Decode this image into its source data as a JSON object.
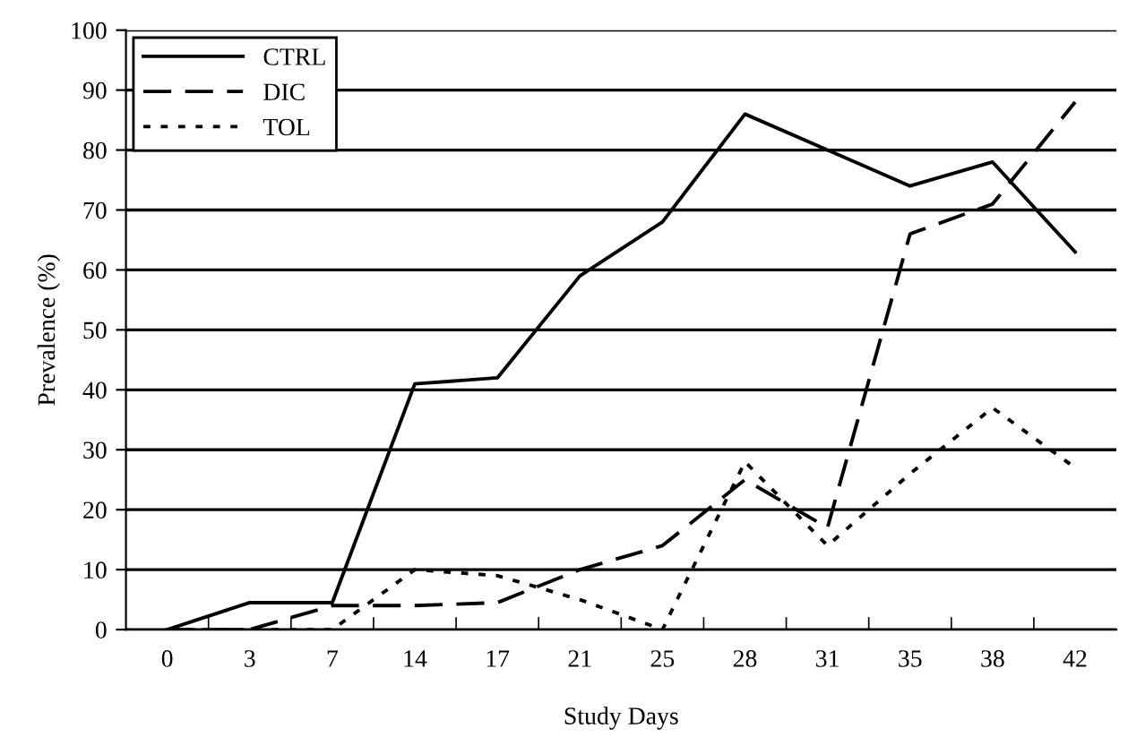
{
  "chart_data": {
    "type": "line",
    "xlabel": "Study Days",
    "ylabel": "Prevalence (%)",
    "categories": [
      "0",
      "3",
      "7",
      "14",
      "17",
      "21",
      "25",
      "28",
      "31",
      "35",
      "38",
      "42"
    ],
    "series": [
      {
        "name": "CTRL",
        "color": "#000000",
        "line_style": "solid",
        "values": [
          0,
          4.5,
          4.5,
          41,
          42,
          59,
          68,
          86,
          80,
          74,
          78,
          63
        ]
      },
      {
        "name": "DIC",
        "color": "#000000",
        "line_style": "dashed",
        "values": [
          0,
          0,
          4,
          4,
          4.5,
          10,
          14,
          25,
          17,
          66,
          71,
          88
        ]
      },
      {
        "name": "TOL",
        "color": "#000000",
        "line_style": "dotted",
        "values": [
          0,
          0,
          0,
          10,
          9,
          5,
          0,
          28,
          14,
          26,
          37,
          27
        ]
      }
    ],
    "ylim": [
      0,
      100
    ],
    "yticks": [
      0,
      10,
      20,
      30,
      40,
      50,
      60,
      70,
      80,
      90,
      100
    ],
    "grid": "y",
    "legend": "top left",
    "marker": "none"
  }
}
